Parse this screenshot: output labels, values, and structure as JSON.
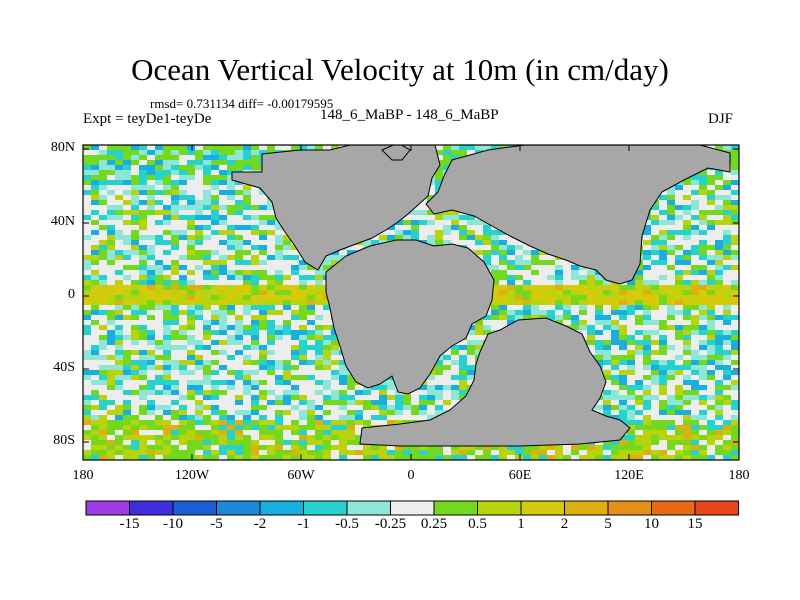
{
  "title": "Ocean Vertical Velocity at 10m (in cm/day)",
  "stats_text": "rmsd= 0.731134 diff= -0.00179595",
  "experiment_text": "Expt = teyDe1-teyDe",
  "period_text": "148_6_MaBP - 148_6_MaBP",
  "season": "DJF",
  "lat_ticks": [
    "80N",
    "40N",
    "0",
    "40S",
    "80S"
  ],
  "lon_ticks": [
    "180",
    "120W",
    "60W",
    "0",
    "60E",
    "120E",
    "180"
  ],
  "colorbar": {
    "colors": [
      "#9b3ce6",
      "#3f2ddc",
      "#1e5fd9",
      "#1c8ad9",
      "#19aee0",
      "#27d2cc",
      "#8de6d6",
      "#ededed",
      "#74d81e",
      "#b9d40d",
      "#d6cb0a",
      "#ddb011",
      "#e6901a",
      "#e96a16",
      "#e8451a"
    ],
    "labels": [
      "-15",
      "-10",
      "-5",
      "-2",
      "-1",
      "-0.5",
      "-0.25",
      "0.25",
      "0.5",
      "1",
      "2",
      "5",
      "10",
      "15"
    ]
  },
  "colors": {
    "land": "#a7a7a7",
    "ocean_background": "#e6e6e6",
    "border": "#000000"
  }
}
